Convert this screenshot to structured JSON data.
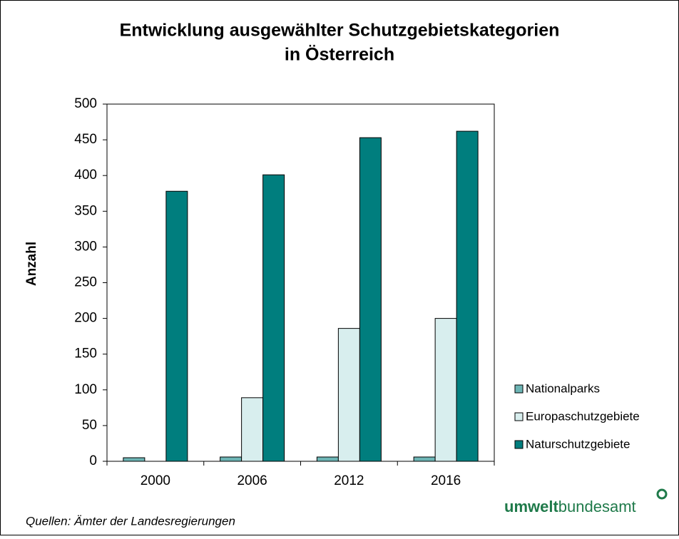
{
  "chart_data": {
    "type": "bar",
    "title": [
      "Entwicklung ausgewählter Schutzgebietskategorien",
      "in Österreich"
    ],
    "y_label": "Anzahl",
    "categories": [
      "2000",
      "2006",
      "2012",
      "2016"
    ],
    "series": [
      {
        "name": "Nationalparks",
        "color": "#6db5b5",
        "values": [
          5,
          6,
          6,
          6
        ]
      },
      {
        "name": "Europaschutzgebiete",
        "color": "#d8eeee",
        "values": [
          0,
          89,
          186,
          200
        ]
      },
      {
        "name": "Naturschutzgebiete",
        "color": "#007e7e",
        "values": [
          378,
          401,
          453,
          462
        ]
      }
    ],
    "ylim": [
      0,
      500
    ],
    "yticks": [
      0,
      50,
      100,
      150,
      200,
      250,
      300,
      350,
      400,
      450,
      500
    ],
    "grid": false,
    "legend": "right"
  },
  "source": "Quellen: Ämter der Landesregierungen",
  "logo": {
    "bold": "umwelt",
    "regular": "bundesamt"
  }
}
